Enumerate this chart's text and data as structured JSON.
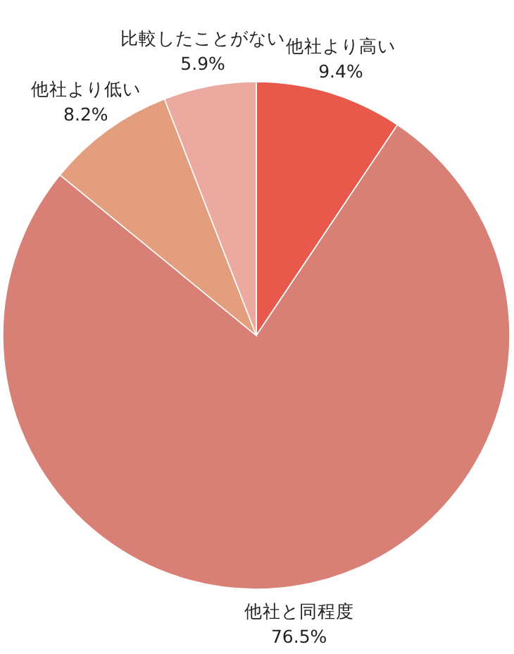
{
  "chart_data": {
    "type": "pie",
    "categories": [
      "他社より高い",
      "他社と同程度",
      "他社より低い",
      "比較したことがない"
    ],
    "values": [
      9.4,
      76.5,
      8.2,
      5.9
    ],
    "colors": [
      "#e8594b",
      "#d98076",
      "#e39e7e",
      "#eba9a0"
    ],
    "value_labels": [
      "9.4%",
      "76.5%",
      "8.2%",
      "5.9%"
    ]
  }
}
